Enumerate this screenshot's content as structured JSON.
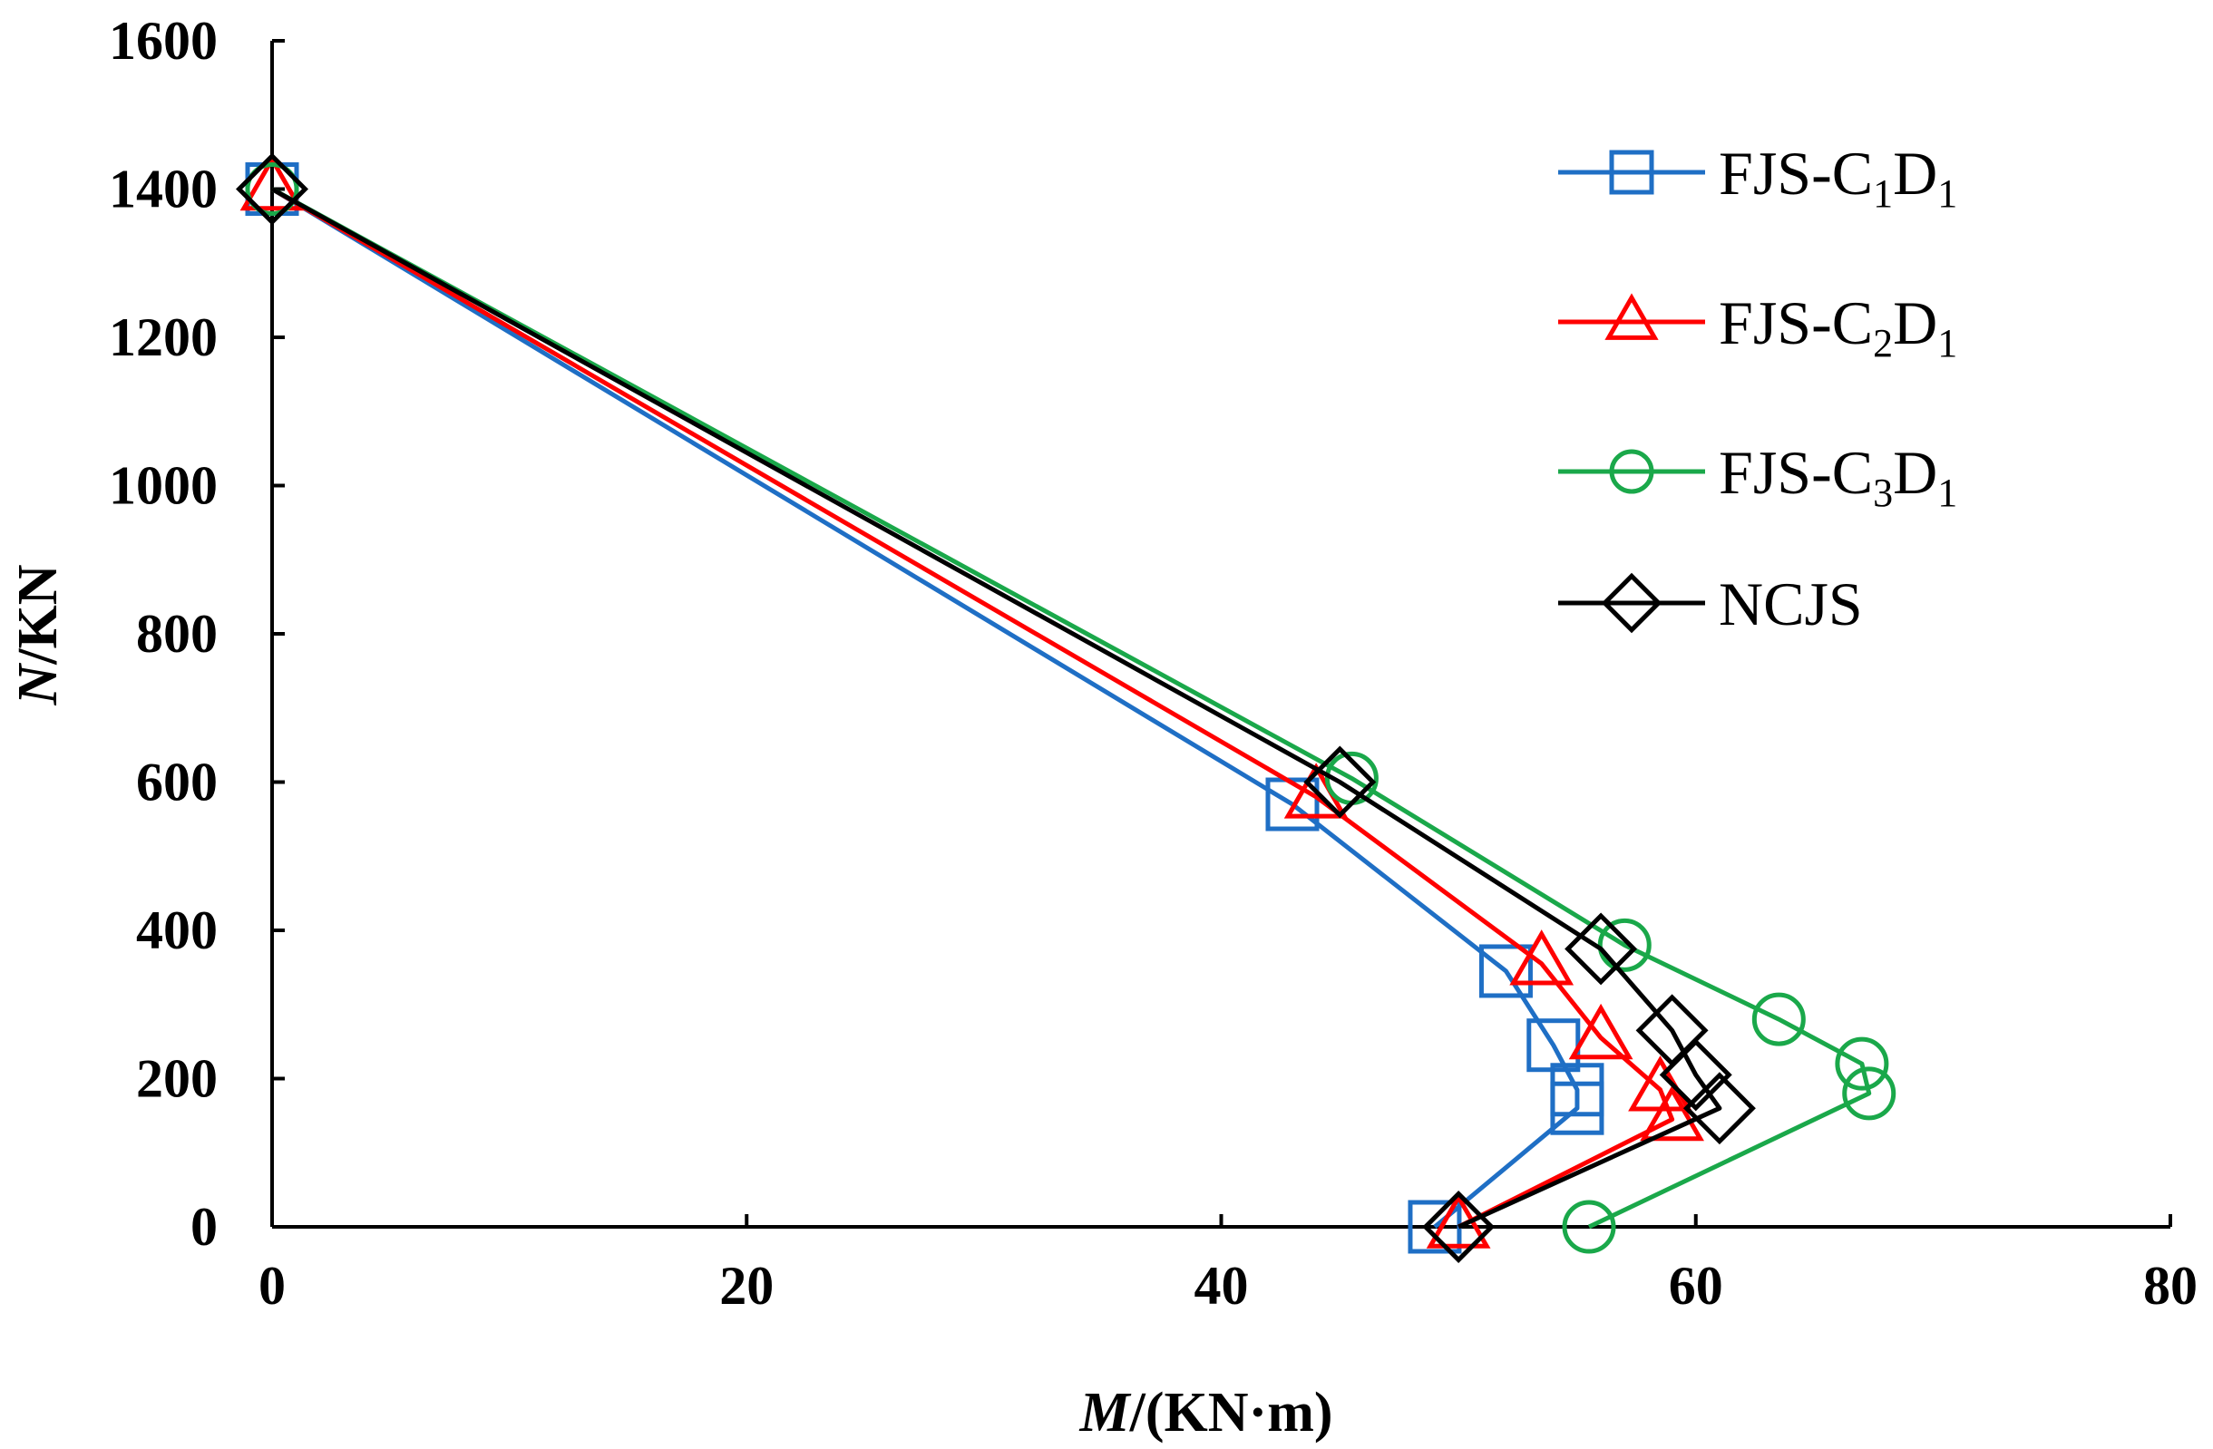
{
  "chart_data": {
    "type": "line",
    "xlabel_italic": "M",
    "xlabel_rest": "/(KN·m)",
    "ylabel_italic": "N",
    "ylabel_rest": "/KN",
    "xlim": [
      0,
      80
    ],
    "ylim": [
      0,
      1600
    ],
    "xticks": [
      "0",
      "20",
      "40",
      "60",
      "80"
    ],
    "yticks": [
      "0",
      "200",
      "400",
      "600",
      "800",
      "1000",
      "1200",
      "1400",
      "1600"
    ],
    "grid": false,
    "legend_position": "top-right",
    "series": [
      {
        "name_main": "FJS-C",
        "name_sub1": "1",
        "name_mid": "D",
        "name_sub2": "1",
        "color": "#1f6fc5",
        "marker": "square",
        "points": [
          [
            0,
            1400
          ],
          [
            43,
            570
          ],
          [
            52,
            345
          ],
          [
            54,
            245
          ],
          [
            55,
            185
          ],
          [
            55,
            160
          ],
          [
            49,
            0
          ]
        ]
      },
      {
        "name_main": "FJS-C",
        "name_sub1": "2",
        "name_mid": "D",
        "name_sub2": "1",
        "color": "#ff0000",
        "marker": "triangle",
        "points": [
          [
            0,
            1400
          ],
          [
            44,
            580
          ],
          [
            53.5,
            355
          ],
          [
            56,
            255
          ],
          [
            58.5,
            185
          ],
          [
            59,
            145
          ],
          [
            50,
            0
          ]
        ]
      },
      {
        "name_main": "FJS-C",
        "name_sub1": "3",
        "name_mid": "D",
        "name_sub2": "1",
        "color": "#1aa84a",
        "marker": "circle",
        "points": [
          [
            0,
            1400
          ],
          [
            45.5,
            605
          ],
          [
            57,
            380
          ],
          [
            63.5,
            280
          ],
          [
            67,
            220
          ],
          [
            67.3,
            180
          ],
          [
            55.5,
            0
          ]
        ]
      },
      {
        "name_main": "NCJS",
        "name_sub1": "",
        "name_mid": "",
        "name_sub2": "",
        "color": "#000000",
        "marker": "diamond",
        "points": [
          [
            0,
            1400
          ],
          [
            45,
            600
          ],
          [
            56,
            375
          ],
          [
            59,
            265
          ],
          [
            60,
            205
          ],
          [
            61,
            160
          ],
          [
            50,
            0
          ]
        ]
      }
    ]
  }
}
